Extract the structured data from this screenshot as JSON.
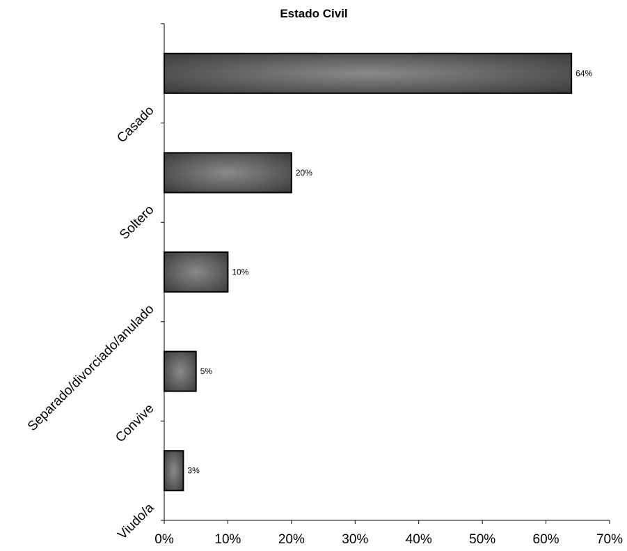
{
  "chart_data": {
    "type": "bar",
    "orientation": "horizontal",
    "title": "Estado Civil",
    "categories": [
      "Casado",
      "Soltero",
      "Separado/divorciado/anulado",
      "Convive",
      "Viudo/a"
    ],
    "values": [
      64,
      20,
      10,
      5,
      3
    ],
    "data_labels": [
      "64%",
      "20%",
      "10%",
      "5%",
      "3%"
    ],
    "xlabel": "",
    "ylabel": "",
    "xlim": [
      0,
      70
    ],
    "x_ticks": [
      0,
      10,
      20,
      30,
      40,
      50,
      60,
      70
    ],
    "x_tick_labels": [
      "0%",
      "10%",
      "20%",
      "30%",
      "40%",
      "50%",
      "60%",
      "70%"
    ],
    "grid": false,
    "legend": "none",
    "bar_color": "#3a3a3a",
    "bar_highlight_color": "#8a8a8a"
  }
}
